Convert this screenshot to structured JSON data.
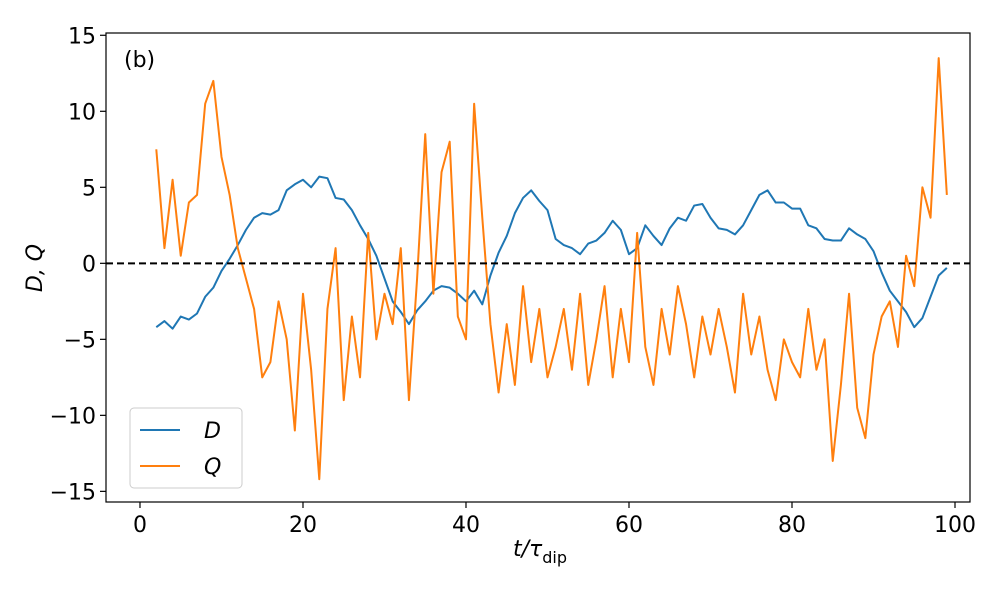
{
  "chart_data": {
    "type": "line",
    "annotation": "(b)",
    "xlabel": {
      "main": "t/τ",
      "sub": "dip"
    },
    "ylabel": "D, Q",
    "xlim": [
      -4.17,
      101.84
    ],
    "ylim": [
      -15.7,
      15.15
    ],
    "xticks": [
      0,
      20,
      40,
      60,
      80,
      100
    ],
    "yticks": [
      {
        "value": -15,
        "label": "−15"
      },
      {
        "value": -10,
        "label": "−10"
      },
      {
        "value": -5,
        "label": "−5"
      },
      0,
      5,
      10,
      15
    ],
    "hline": 0,
    "legend": "lower left",
    "x": [
      2,
      3,
      4,
      5,
      6,
      7,
      8,
      9,
      10,
      11,
      12,
      13,
      14,
      15,
      16,
      17,
      18,
      19,
      20,
      21,
      22,
      23,
      24,
      25,
      26,
      27,
      28,
      29,
      30,
      31,
      32,
      33,
      34,
      35,
      36,
      37,
      38,
      39,
      40,
      41,
      42,
      43,
      44,
      45,
      46,
      47,
      48,
      49,
      50,
      51,
      52,
      53,
      54,
      55,
      56,
      57,
      58,
      59,
      60,
      61,
      62,
      63,
      64,
      65,
      66,
      67,
      68,
      69,
      70,
      71,
      72,
      73,
      74,
      75,
      76,
      77,
      78,
      79,
      80,
      81,
      82,
      83,
      84,
      85,
      86,
      87,
      88,
      89,
      90,
      91,
      92,
      93,
      94,
      95,
      96,
      97,
      98,
      99
    ],
    "series": [
      {
        "name": "D",
        "color": "#1f77b4",
        "values": [
          -4.2,
          -3.8,
          -4.3,
          -3.5,
          -3.7,
          -3.3,
          -2.2,
          -1.6,
          -0.5,
          0.3,
          1.2,
          2.2,
          3.0,
          3.3,
          3.2,
          3.5,
          4.8,
          5.2,
          5.5,
          5.0,
          5.7,
          5.6,
          4.3,
          4.2,
          3.5,
          2.5,
          1.6,
          0.5,
          -1.0,
          -2.5,
          -3.2,
          -4.0,
          -3.1,
          -2.5,
          -1.8,
          -1.5,
          -1.6,
          -2.0,
          -2.5,
          -1.8,
          -2.7,
          -0.8,
          0.7,
          1.8,
          3.3,
          4.3,
          4.8,
          4.1,
          3.5,
          1.6,
          1.2,
          1.0,
          0.6,
          1.3,
          1.5,
          2.0,
          2.8,
          2.2,
          0.6,
          1.0,
          2.5,
          1.8,
          1.2,
          2.3,
          3.0,
          2.8,
          3.8,
          3.9,
          3.0,
          2.3,
          2.2,
          1.9,
          2.5,
          3.5,
          4.5,
          4.8,
          4.0,
          4.0,
          3.6,
          3.6,
          2.5,
          2.3,
          1.6,
          1.5,
          1.5,
          2.3,
          1.9,
          1.6,
          0.8,
          -0.6,
          -1.8,
          -2.5,
          -3.2,
          -4.2,
          -3.6,
          -2.2,
          -0.8,
          -0.3
        ]
      },
      {
        "name": "Q",
        "color": "#ff7f0e",
        "values": [
          7.5,
          1.0,
          5.5,
          0.5,
          4.0,
          4.5,
          10.5,
          12.0,
          7.0,
          4.5,
          1.0,
          -1.0,
          -3.0,
          -7.5,
          -6.5,
          -2.5,
          -5.0,
          -11.0,
          -2.0,
          -7.0,
          -14.2,
          -3.0,
          1.0,
          -9.0,
          -3.5,
          -7.5,
          2.0,
          -5.0,
          -2.0,
          -4.0,
          1.0,
          -9.0,
          -1.0,
          8.5,
          -2.0,
          6.0,
          8.0,
          -3.5,
          -5.0,
          10.5,
          3.0,
          -4.0,
          -8.5,
          -4.0,
          -8.0,
          -1.5,
          -6.5,
          -3.0,
          -7.5,
          -5.5,
          -3.0,
          -7.0,
          -2.0,
          -8.0,
          -5.0,
          -1.5,
          -7.5,
          -3.0,
          -6.5,
          2.0,
          -5.5,
          -8.0,
          -3.0,
          -6.0,
          -1.5,
          -4.0,
          -7.5,
          -3.5,
          -6.0,
          -3.0,
          -5.5,
          -8.5,
          -2.0,
          -6.0,
          -3.5,
          -7.0,
          -9.0,
          -5.0,
          -6.5,
          -7.5,
          -3.0,
          -7.0,
          -5.0,
          -13.0,
          -8.0,
          -2.0,
          -9.5,
          -11.5,
          -6.0,
          -3.5,
          -2.5,
          -5.5,
          0.5,
          -1.5,
          5.0,
          3.0,
          13.5,
          4.5
        ]
      }
    ]
  }
}
